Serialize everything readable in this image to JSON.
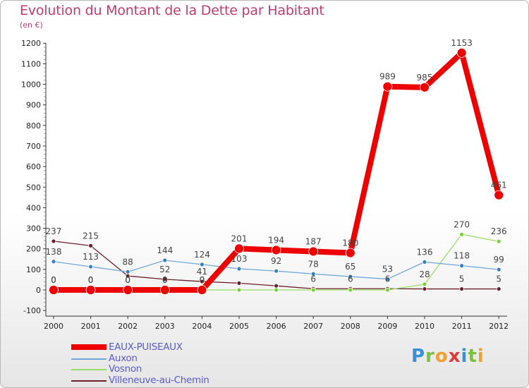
{
  "title": "Evolution du Montant de la Dette par Habitant",
  "unit": "(en €)",
  "logo": {
    "letters": [
      "P",
      "r",
      "o",
      "x",
      "i",
      "t",
      "i"
    ],
    "colors": [
      "#3b8fd6",
      "#7fbf3f",
      "#f0a030",
      "#e23a3a",
      "#3b8fd6",
      "#7fbf3f",
      "#f0a030"
    ]
  },
  "chart_data": {
    "type": "line",
    "x": [
      2000,
      2001,
      2002,
      2003,
      2004,
      2005,
      2006,
      2007,
      2008,
      2009,
      2010,
      2011,
      2012
    ],
    "x_tick_labels": [
      "2000",
      "2001",
      "2002",
      "2003",
      "2004",
      "2005",
      "2006",
      "2007",
      "2008",
      "2009",
      "2010",
      "2011",
      "2012"
    ],
    "ylim": [
      -100,
      1200
    ],
    "y_ticks": [
      -100,
      0,
      100,
      200,
      300,
      400,
      500,
      600,
      700,
      800,
      900,
      1000,
      1100,
      1200
    ],
    "y_tick_labels": [
      "-100",
      "0",
      "100",
      "200",
      "300",
      "400",
      "500",
      "600",
      "700",
      "800",
      "900",
      "1000",
      "1100",
      "1200"
    ],
    "grid": false,
    "legend_placement": "bottom-left",
    "series": [
      {
        "name": "Villeneuve-au-Chemin",
        "color": "#6b1f2a",
        "marker": "#6b1f2a",
        "thick": false,
        "values": [
          237,
          215,
          68,
          52,
          41,
          33,
          20,
          6,
          6,
          6,
          5,
          5,
          5
        ],
        "labels": [
          "237",
          "215",
          "",
          "52",
          "41",
          "",
          "",
          "6",
          "6",
          "6",
          "",
          "5",
          "5"
        ]
      },
      {
        "name": "Vosnon",
        "color": "#99dd66",
        "marker": "#7ccf3a",
        "thick": false,
        "values": [
          0,
          0,
          0,
          0,
          0,
          0,
          0,
          0,
          0,
          0,
          28,
          270,
          236
        ],
        "labels": [
          "0",
          "0",
          "0",
          "0",
          "0",
          "",
          "",
          "",
          "",
          "",
          "28",
          "270",
          "236"
        ]
      },
      {
        "name": "Auxon",
        "color": "#6fa8dc",
        "marker": "#3a7fc4",
        "thick": false,
        "values": [
          138,
          113,
          88,
          144,
          124,
          103,
          92,
          78,
          65,
          53,
          136,
          118,
          99
        ],
        "labels": [
          "138",
          "113",
          "88",
          "144",
          "124",
          "103",
          "92",
          "78",
          "65",
          "53",
          "136",
          "118",
          "99"
        ]
      },
      {
        "name": "EAUX-PUISEAUX",
        "color": "#ee0000",
        "marker": "#ee0000",
        "thick": true,
        "values": [
          0,
          0,
          0,
          0,
          0,
          201,
          194,
          187,
          180,
          989,
          985,
          1153,
          461
        ],
        "labels": [
          "0",
          "0",
          "0",
          "0",
          "0",
          "201",
          "194",
          "187",
          "180",
          "989",
          "985",
          "1153",
          "461"
        ]
      }
    ]
  }
}
